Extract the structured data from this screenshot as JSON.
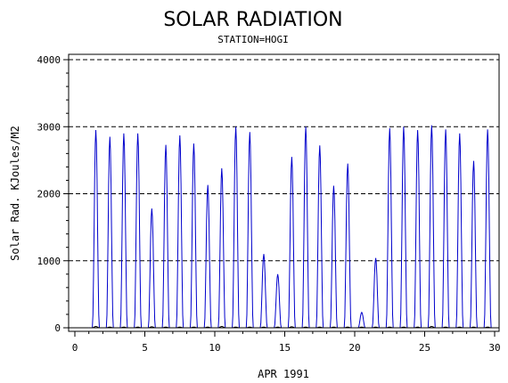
{
  "chart_data": {
    "type": "line",
    "title": "SOLAR RADIATION",
    "subtitle": "STATION=HOGI",
    "xlabel": "APR 1991",
    "ylabel": "Solar Rad. KJoules/M2",
    "xlim": [
      0,
      30
    ],
    "ylim": [
      0,
      4000
    ],
    "x_ticks": [
      0,
      5,
      10,
      15,
      20,
      25,
      30
    ],
    "x_tick_labels": [
      "0",
      "5",
      "10",
      "15",
      "20",
      "25",
      "30"
    ],
    "y_ticks": [
      0,
      1000,
      2000,
      3000,
      4000
    ],
    "y_tick_labels": [
      "0",
      "1000",
      "2000",
      "3000",
      "4000"
    ],
    "grid": "horizontal dashed at 1000, 2000, 3000, 4000",
    "series": [
      {
        "color": "#0000cc",
        "daily_peaks": [
          {
            "day": 1.5,
            "value": 2950
          },
          {
            "day": 2.5,
            "value": 2850
          },
          {
            "day": 3.5,
            "value": 2900
          },
          {
            "day": 4.5,
            "value": 2900
          },
          {
            "day": 5.5,
            "value": 1780
          },
          {
            "day": 6.5,
            "value": 2730
          },
          {
            "day": 7.5,
            "value": 2870
          },
          {
            "day": 8.5,
            "value": 2750
          },
          {
            "day": 9.5,
            "value": 2130
          },
          {
            "day": 10.5,
            "value": 2380
          },
          {
            "day": 11.5,
            "value": 3000
          },
          {
            "day": 12.5,
            "value": 2920
          },
          {
            "day": 13.5,
            "value": 1100
          },
          {
            "day": 14.5,
            "value": 800
          },
          {
            "day": 15.5,
            "value": 2550
          },
          {
            "day": 16.5,
            "value": 3000
          },
          {
            "day": 17.5,
            "value": 2720
          },
          {
            "day": 18.5,
            "value": 2120
          },
          {
            "day": 19.5,
            "value": 2450
          },
          {
            "day": 20.5,
            "value": 230
          },
          {
            "day": 21.5,
            "value": 1040
          },
          {
            "day": 22.5,
            "value": 2980
          },
          {
            "day": 23.5,
            "value": 3000
          },
          {
            "day": 24.5,
            "value": 2950
          },
          {
            "day": 25.5,
            "value": 3020
          },
          {
            "day": 26.5,
            "value": 2960
          },
          {
            "day": 27.5,
            "value": 2900
          },
          {
            "day": 28.5,
            "value": 2490
          },
          {
            "day": 29.5,
            "value": 2960
          }
        ]
      },
      {
        "color": "#000000",
        "description_value": "near-zero baseline",
        "daily_peaks": [
          {
            "day": 1.5,
            "value": 20
          },
          {
            "day": 5.5,
            "value": 15
          },
          {
            "day": 10.5,
            "value": 20
          },
          {
            "day": 15.5,
            "value": 15
          },
          {
            "day": 20.5,
            "value": 10
          },
          {
            "day": 25.5,
            "value": 20
          }
        ]
      }
    ]
  }
}
